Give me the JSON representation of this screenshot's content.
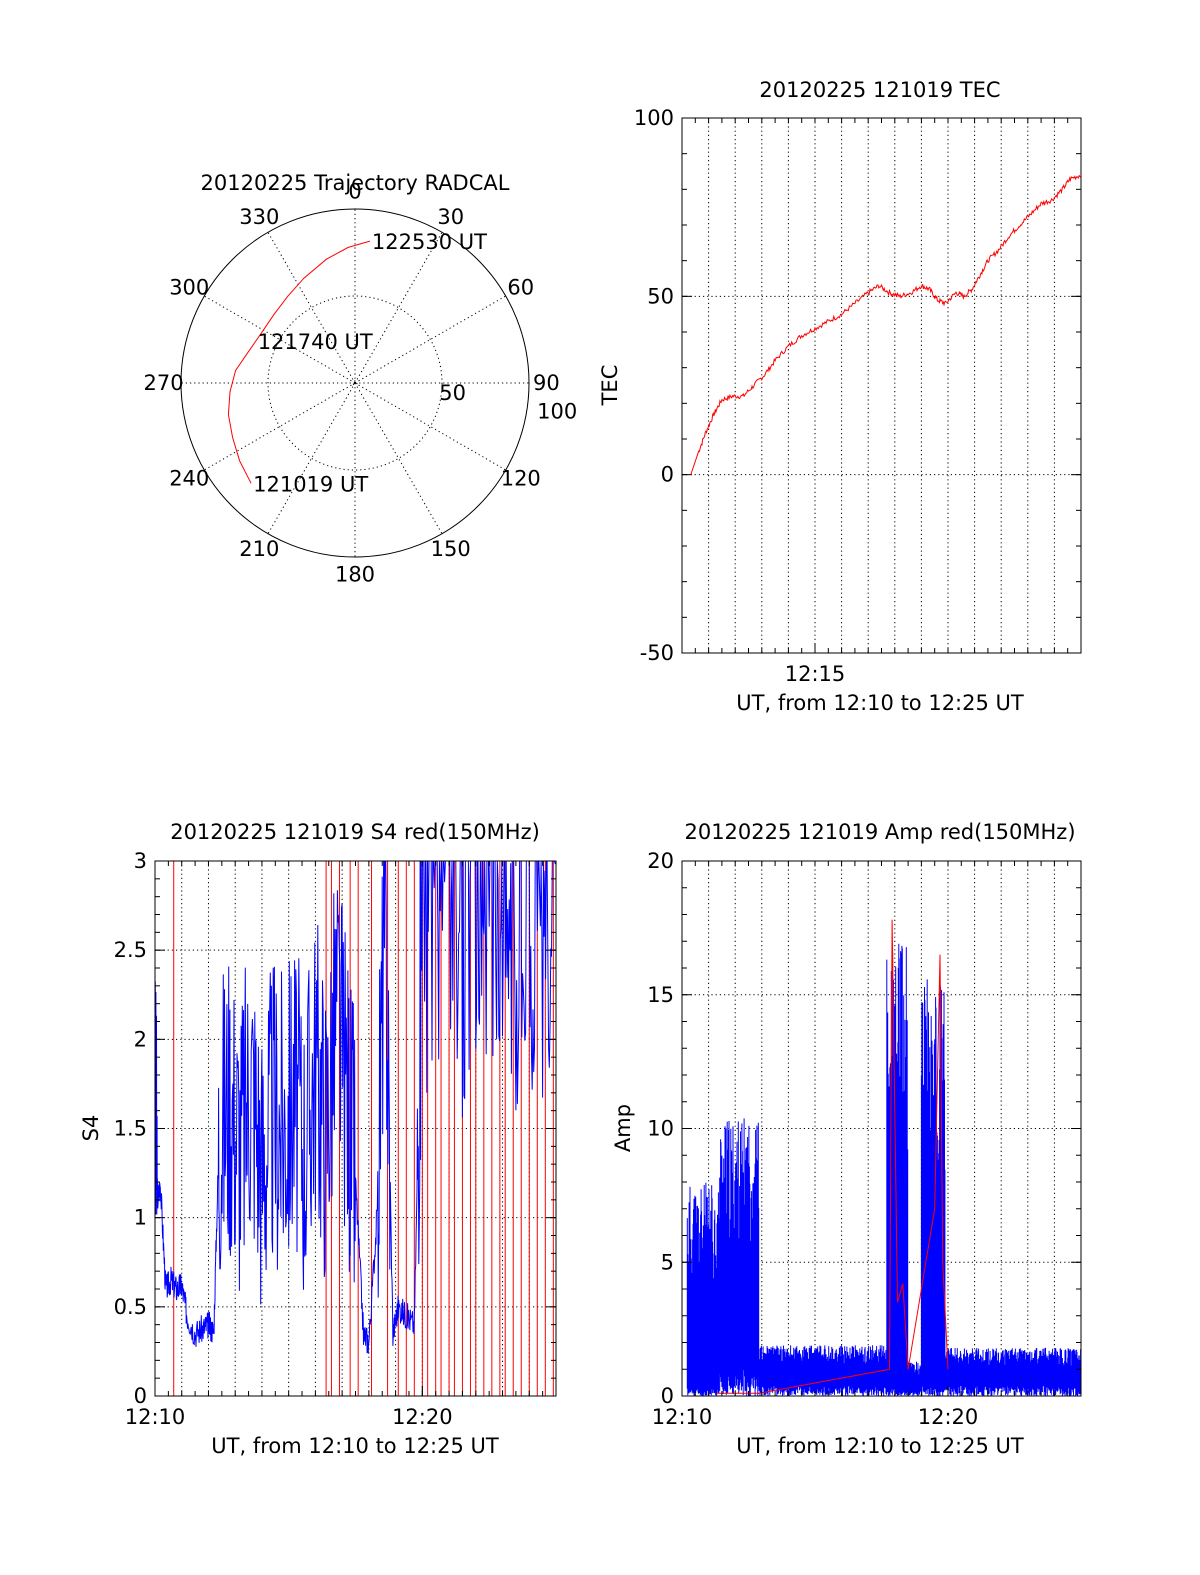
{
  "chart_data": [
    {
      "id": "polar",
      "type": "polar-trajectory",
      "title": "20120225 Trajectory RADCAL",
      "azimuth_labels": [
        {
          "az": 0,
          "text": "0"
        },
        {
          "az": 30,
          "text": "30"
        },
        {
          "az": 60,
          "text": "60"
        },
        {
          "az": 90,
          "text": "90"
        },
        {
          "az": 120,
          "text": "120"
        },
        {
          "az": 150,
          "text": "150"
        },
        {
          "az": 180,
          "text": "180"
        },
        {
          "az": 210,
          "text": "210"
        },
        {
          "az": 240,
          "text": "240"
        },
        {
          "az": 270,
          "text": "270"
        },
        {
          "az": 300,
          "text": "300"
        },
        {
          "az": 330,
          "text": "330"
        }
      ],
      "radial_max": 100,
      "radial_rings": [
        50,
        100
      ],
      "radial_labels": [
        "50",
        "100"
      ],
      "trajectory": {
        "color": "#ff0000",
        "points": [
          {
            "az": 226,
            "r": 83
          },
          {
            "az": 236,
            "r": 80
          },
          {
            "az": 246,
            "r": 77
          },
          {
            "az": 256,
            "r": 75
          },
          {
            "az": 266,
            "r": 72
          },
          {
            "az": 276,
            "r": 69
          },
          {
            "az": 286,
            "r": 64
          },
          {
            "az": 298,
            "r": 61
          },
          {
            "az": 310,
            "r": 61
          },
          {
            "az": 322,
            "r": 63
          },
          {
            "az": 334,
            "r": 67
          },
          {
            "az": 347,
            "r": 73
          },
          {
            "az": 357,
            "r": 78
          },
          {
            "az": 6,
            "r": 82
          }
        ],
        "annotations": [
          {
            "text": "121019 UT",
            "az": 226,
            "r": 83
          },
          {
            "text": "121740 UT",
            "az": 293,
            "r": 62
          },
          {
            "text": "122530 UT",
            "az": 6,
            "r": 82
          }
        ]
      }
    },
    {
      "id": "tec",
      "type": "line",
      "title": "20120225 121019 TEC",
      "xlabel": "UT, from 12:10 to 12:25 UT",
      "ylabel": "TEC",
      "xlim": [
        10,
        25
      ],
      "ylim": [
        -50,
        100
      ],
      "yticks": [
        -50,
        0,
        50,
        100
      ],
      "xticks": [
        {
          "t": 15,
          "label": "12:15"
        }
      ],
      "series": [
        {
          "name": "TEC",
          "color": "#ff0000",
          "x": [
            10.33,
            10.6,
            10.9,
            11.2,
            11.5,
            11.9,
            12.3,
            12.7,
            13.1,
            13.5,
            14.0,
            14.5,
            15.0,
            15.5,
            16.0,
            16.5,
            17.0,
            17.4,
            17.8,
            18.2,
            18.6,
            19.0,
            19.3,
            19.6,
            19.9,
            20.3,
            20.6,
            20.9,
            21.2,
            21.5,
            21.9,
            22.3,
            22.7,
            23.1,
            23.5,
            23.9,
            24.3,
            24.6,
            25.0
          ],
          "y": [
            0,
            6,
            12,
            17,
            21,
            22,
            22,
            25,
            28,
            32,
            36,
            39,
            41,
            43,
            45,
            48,
            51,
            53,
            51,
            50,
            51,
            53,
            52,
            49,
            48,
            51,
            50,
            52,
            56,
            60,
            63,
            67,
            70,
            73,
            76,
            77,
            80,
            83,
            84
          ]
        }
      ]
    },
    {
      "id": "s4",
      "type": "line",
      "title": "20120225 121019 S4 red(150MHz)",
      "xlabel": "UT, from 12:10 to 12:25 UT",
      "ylabel": "S4",
      "xlim": [
        10,
        25
      ],
      "ylim": [
        0,
        3
      ],
      "yticks": [
        0,
        0.5,
        1,
        1.5,
        2,
        2.5,
        3
      ],
      "ytick_labels": [
        "0",
        "0.5",
        "1",
        "1.5",
        "2",
        "2.5",
        "3"
      ],
      "xticks": [
        {
          "t": 10,
          "label": "12:10"
        },
        {
          "t": 20,
          "label": "12:20"
        }
      ],
      "series": [
        {
          "name": "S4 blue",
          "color": "#0000ff",
          "x": [
            10.0,
            10.1,
            10.2,
            10.4,
            10.6,
            10.8,
            11.0,
            11.2,
            11.5,
            11.8,
            12.0,
            12.2,
            12.4,
            12.8,
            13.2,
            13.6,
            14.0,
            14.4,
            14.8,
            15.2,
            15.6,
            16.0,
            16.4,
            16.8,
            17.2,
            17.5,
            17.8,
            18.0,
            18.3,
            18.6,
            18.9,
            19.1,
            19.4,
            19.7,
            20.0,
            20.5,
            21.0,
            21.5,
            22.0,
            22.5,
            23.0,
            23.5,
            24.0,
            24.5,
            25.0
          ],
          "y": [
            1.6,
            1.1,
            1.2,
            0.6,
            0.65,
            0.6,
            0.62,
            0.45,
            0.35,
            0.38,
            0.4,
            0.36,
            1.5,
            1.7,
            1.4,
            1.8,
            1.3,
            1.6,
            1.5,
            1.7,
            1.4,
            1.9,
            1.5,
            2.2,
            1.7,
            1.2,
            0.35,
            0.3,
            1.0,
            2.8,
            0.35,
            0.5,
            0.45,
            0.4,
            2.6,
            2.4,
            2.9,
            2.3,
            2.7,
            2.2,
            2.8,
            2.4,
            2.6,
            2.5,
            2.7
          ]
        }
      ],
      "red_spikes": [
        10.7,
        16.4,
        16.6,
        16.9,
        17.3,
        17.6,
        18.1,
        18.7,
        19.1,
        19.4,
        19.7,
        20.0,
        20.2,
        20.5,
        20.7,
        21.0,
        21.2,
        21.5,
        21.8,
        22.0,
        22.3,
        22.6,
        22.9,
        23.1,
        23.4,
        23.7,
        24.0,
        24.3,
        24.6,
        24.9
      ]
    },
    {
      "id": "amp",
      "type": "line",
      "title": "20120225 121019 Amp red(150MHz)",
      "xlabel": "UT, from 12:10 to 12:25 UT",
      "ylabel": "Amp",
      "xlim": [
        10,
        25
      ],
      "ylim": [
        0,
        20
      ],
      "yticks": [
        0,
        5,
        10,
        15,
        20
      ],
      "xticks": [
        {
          "t": 10,
          "label": "12:10"
        },
        {
          "t": 20,
          "label": "12:20"
        }
      ],
      "series": [
        {
          "name": "Amp blue",
          "color": "#0000ff",
          "bursts": [
            {
              "x0": 10.2,
              "x1": 11.4,
              "lo": 0.3,
              "hi": 8.0
            },
            {
              "x0": 11.4,
              "x1": 12.9,
              "lo": 1.0,
              "hi": 10.4
            },
            {
              "x0": 12.9,
              "x1": 17.7,
              "lo": 0.4,
              "hi": 1.9
            },
            {
              "x0": 17.7,
              "x1": 18.5,
              "lo": 0.3,
              "hi": 17.0
            },
            {
              "x0": 18.5,
              "x1": 19.0,
              "lo": 0.2,
              "hi": 1.3
            },
            {
              "x0": 19.0,
              "x1": 19.9,
              "lo": 0.4,
              "hi": 15.6
            },
            {
              "x0": 19.9,
              "x1": 25.0,
              "lo": 0.4,
              "hi": 1.8
            }
          ]
        },
        {
          "name": "Amp red",
          "color": "#ff0000",
          "x": [
            11.3,
            12.9,
            17.8,
            17.9,
            18.1,
            18.3,
            18.5,
            19.5,
            19.7,
            19.8,
            20.0
          ],
          "y": [
            0.1,
            0.1,
            1.0,
            17.8,
            3.5,
            4.2,
            1.0,
            7.0,
            16.5,
            5.0,
            1.0
          ]
        }
      ]
    }
  ]
}
